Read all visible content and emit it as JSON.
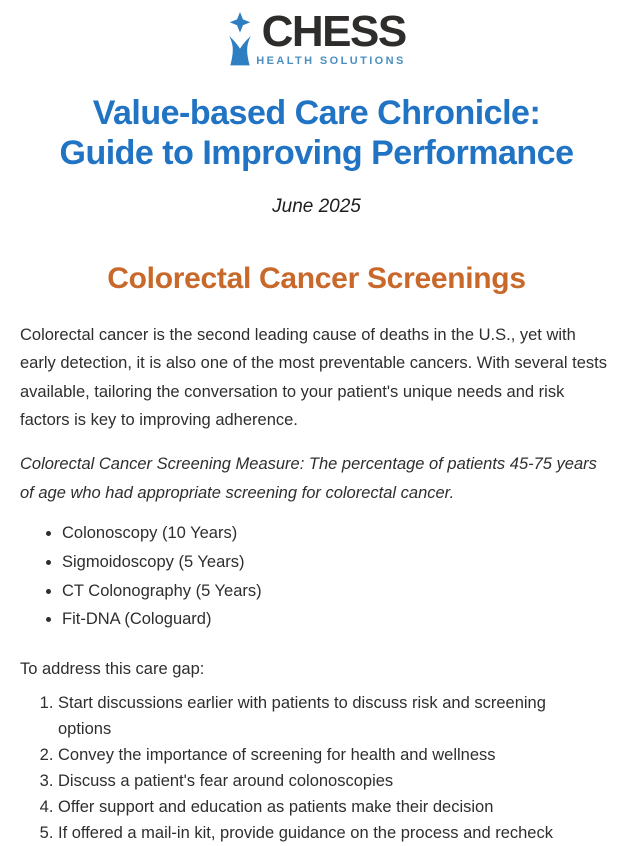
{
  "logo": {
    "brand": "CHESS",
    "tagline": "HEALTH SOLUTIONS",
    "icon": "chess-piece-icon",
    "brand_color": "#2e2d2c",
    "accent_color": "#2e7fc2"
  },
  "header": {
    "title_line1": "Value-based Care Chronicle:",
    "title_line2": "Guide to Improving Performance",
    "title_color": "#2173c4",
    "date": "June 2025"
  },
  "article": {
    "heading": "Colorectal Cancer Screenings",
    "heading_color": "#c8682a",
    "intro": "Colorectal cancer is the second leading cause of deaths in the U.S., yet with early detection, it is also one of the most preventable cancers. With several tests available, tailoring the conversation to your patient's unique needs and risk factors is key to improving adherence.",
    "measure": "Colorectal Cancer Screening Measure: The percentage of patients 45-75 years of age who had appropriate screening for colorectal cancer.",
    "screening_options": [
      "Colonoscopy (10 Years)",
      "Sigmoidoscopy (5 Years)",
      "CT Colonography (5 Years)",
      "Fit-DNA (Cologuard)"
    ],
    "care_gap_label": "To address this care gap:",
    "care_gap_steps": [
      "Start discussions earlier with patients to discuss risk and screening options",
      "Convey the importance of screening for health and wellness",
      "Discuss a patient's fear around colonoscopies",
      "Offer support and education as patients make their decision",
      "If offered a mail-in kit, provide guidance on the process and recheck"
    ]
  }
}
